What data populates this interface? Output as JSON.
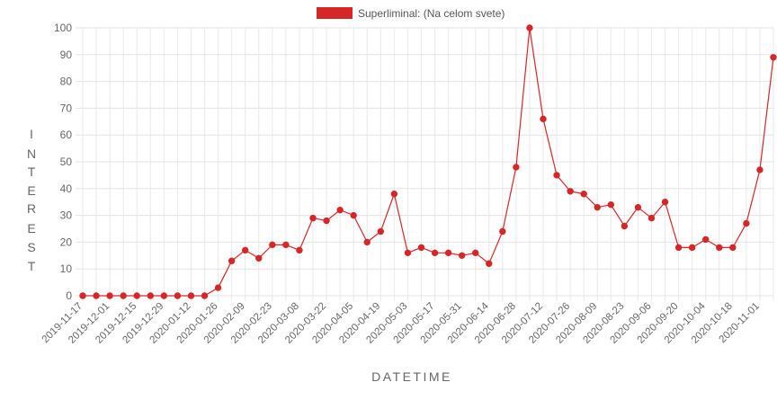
{
  "chart_data": {
    "type": "line",
    "xlabel": "DATETIME",
    "ylabel": "INTEREST %",
    "ylim": [
      0,
      100
    ],
    "yticks": [
      0,
      10,
      20,
      30,
      40,
      50,
      60,
      70,
      80,
      90,
      100
    ],
    "grid": true,
    "legend_position": "top-center",
    "series_color": "#d62728",
    "x_tick_labels": [
      "2019-11-17",
      "2019-12-01",
      "2019-12-15",
      "2019-12-29",
      "2020-01-12",
      "2020-01-26",
      "2020-02-09",
      "2020-02-23",
      "2020-03-08",
      "2020-03-22",
      "2020-04-05",
      "2020-04-19",
      "2020-05-03",
      "2020-05-17",
      "2020-05-31",
      "2020-06-14",
      "2020-06-28",
      "2020-07-12",
      "2020-07-26",
      "2020-08-09",
      "2020-08-23",
      "2020-09-06",
      "2020-09-20",
      "2020-10-04",
      "2020-10-18",
      "2020-11-01"
    ],
    "x": [
      "2019-11-17",
      "2019-11-24",
      "2019-12-01",
      "2019-12-08",
      "2019-12-15",
      "2019-12-22",
      "2019-12-29",
      "2020-01-05",
      "2020-01-12",
      "2020-01-19",
      "2020-01-26",
      "2020-02-02",
      "2020-02-09",
      "2020-02-16",
      "2020-02-23",
      "2020-03-01",
      "2020-03-08",
      "2020-03-15",
      "2020-03-22",
      "2020-03-29",
      "2020-04-05",
      "2020-04-12",
      "2020-04-19",
      "2020-04-26",
      "2020-05-03",
      "2020-05-10",
      "2020-05-17",
      "2020-05-24",
      "2020-05-31",
      "2020-06-07",
      "2020-06-14",
      "2020-06-21",
      "2020-06-28",
      "2020-07-05",
      "2020-07-12",
      "2020-07-19",
      "2020-07-26",
      "2020-08-02",
      "2020-08-09",
      "2020-08-16",
      "2020-08-23",
      "2020-08-30",
      "2020-09-06",
      "2020-09-13",
      "2020-09-20",
      "2020-09-27",
      "2020-10-04",
      "2020-10-11",
      "2020-10-18",
      "2020-10-25",
      "2020-11-01",
      "2020-11-08"
    ],
    "series": [
      {
        "name": "Superliminal: (Na celom svete)",
        "values": [
          0,
          0,
          0,
          0,
          0,
          0,
          0,
          0,
          0,
          0,
          3,
          13,
          17,
          14,
          19,
          19,
          17,
          29,
          28,
          32,
          30,
          20,
          24,
          38,
          16,
          18,
          16,
          16,
          15,
          16,
          12,
          24,
          48,
          100,
          66,
          45,
          39,
          38,
          33,
          34,
          26,
          33,
          29,
          35,
          18,
          18,
          21,
          18,
          18,
          27,
          47,
          89
        ]
      }
    ]
  }
}
